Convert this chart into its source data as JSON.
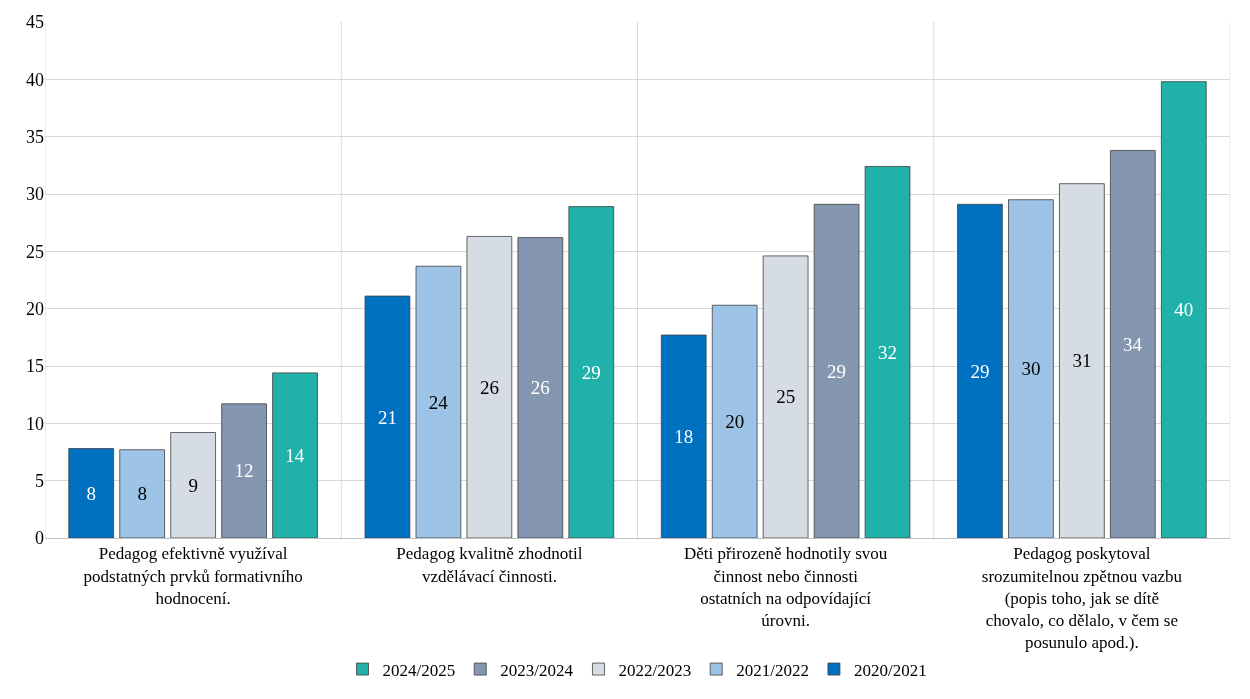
{
  "chart_data": {
    "type": "bar",
    "categories": [
      "Pedagog efektivně využíval podstatných prvků formativního hodnocení.",
      "Pedagog kvalitně zhodnotil vzdělávací činnosti.",
      "Děti přirozeně hodnotily svou činnost nebo činnosti ostatních na odpovídající úrovni.",
      "Pedagog poskytoval srozumitelnou zpětnou vazbu (popis toho, jak se dítě chovalo, co dělalo, v čem se posunulo apod.)."
    ],
    "series": [
      {
        "name": "2020/2021",
        "color": "#0070c0",
        "values": [
          7.8,
          21.1,
          17.7,
          29.1
        ],
        "value_labels": [
          "8",
          "21",
          "18",
          "29"
        ]
      },
      {
        "name": "2021/2022",
        "color": "#9dc3e6",
        "values": [
          7.7,
          23.7,
          20.3,
          29.5
        ],
        "value_labels": [
          "8",
          "24",
          "20",
          "30"
        ]
      },
      {
        "name": "2022/2023",
        "color": "#d6dce4",
        "values": [
          9.2,
          26.3,
          24.6,
          30.9
        ],
        "value_labels": [
          "9",
          "26",
          "25",
          "31"
        ]
      },
      {
        "name": "2023/2024",
        "color": "#8496b0",
        "values": [
          11.7,
          26.2,
          29.1,
          33.8
        ],
        "value_labels": [
          "12",
          "26",
          "29",
          "34"
        ]
      },
      {
        "name": "2024/2025",
        "color": "#20b2aa",
        "values": [
          14.4,
          28.9,
          32.4,
          39.8
        ],
        "value_labels": [
          "14",
          "29",
          "32",
          "40"
        ]
      }
    ],
    "ylim": [
      0,
      45
    ],
    "yticks": [
      0,
      5,
      10,
      15,
      20,
      25,
      30,
      35,
      40,
      45
    ],
    "grid": true,
    "legend": "bottom"
  }
}
